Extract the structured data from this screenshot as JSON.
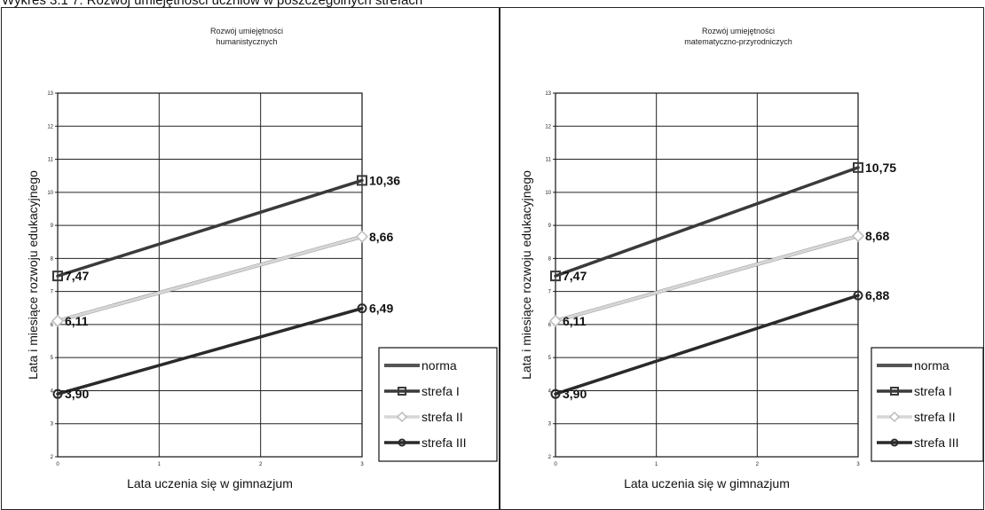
{
  "figure_caption": "Wykres 3.1 7. Rozwój umiejętności uczniów w poszczególnych strefach",
  "chart_data": [
    {
      "type": "line",
      "title": "Rozwój umiejętności humanistycznych",
      "xlabel": "Lata uczenia się w gimnazjum",
      "ylabel": "Lata i miesiące rozwoju edukacyjnego",
      "x": [
        0,
        3
      ],
      "xticks": [
        "0",
        "1",
        "2",
        "3"
      ],
      "ylim": [
        2,
        13
      ],
      "yticks": [
        "2",
        "3",
        "4",
        "5",
        "6",
        "7",
        "8",
        "9",
        "10",
        "11",
        "12",
        "13"
      ],
      "grid": true,
      "legend_position": "right",
      "series": [
        {
          "name": "norma",
          "values": [
            6.11,
            8.66
          ],
          "color": "#555555"
        },
        {
          "name": "strefa I",
          "values": [
            7.47,
            10.36
          ],
          "color": "#3a3a3a"
        },
        {
          "name": "strefa II",
          "values": [
            6.11,
            8.66
          ],
          "color": "#d6d6d6"
        },
        {
          "name": "strefa III",
          "values": [
            3.9,
            6.49
          ],
          "color": "#2a2a2a"
        }
      ],
      "data_labels": [
        {
          "text": "7,47",
          "x": 0,
          "y": 7.47,
          "side": "right"
        },
        {
          "text": "6,11",
          "x": 0,
          "y": 6.11,
          "side": "right"
        },
        {
          "text": "3,90",
          "x": 0,
          "y": 3.9,
          "side": "right"
        },
        {
          "text": "10,36",
          "x": 3,
          "y": 10.36,
          "side": "right"
        },
        {
          "text": "8,66",
          "x": 3,
          "y": 8.66,
          "side": "right"
        },
        {
          "text": "6,49",
          "x": 3,
          "y": 6.49,
          "side": "right"
        }
      ]
    },
    {
      "type": "line",
      "title": "Rozwój umiejętności matematyczno-przyrodniczych",
      "xlabel": "Lata uczenia się w gimnazjum",
      "ylabel": "Lata i miesiące rozwoju edukacyjnego",
      "x": [
        0,
        3
      ],
      "xticks": [
        "0",
        "1",
        "2",
        "3"
      ],
      "ylim": [
        2,
        13
      ],
      "yticks": [
        "2",
        "3",
        "4",
        "5",
        "6",
        "7",
        "8",
        "9",
        "10",
        "11",
        "12",
        "13"
      ],
      "grid": true,
      "legend_position": "right",
      "series": [
        {
          "name": "norma",
          "values": [
            6.11,
            8.68
          ],
          "color": "#555555"
        },
        {
          "name": "strefa I",
          "values": [
            7.47,
            10.75
          ],
          "color": "#3a3a3a"
        },
        {
          "name": "strefa II",
          "values": [
            6.11,
            8.68
          ],
          "color": "#d6d6d6"
        },
        {
          "name": "strefa III",
          "values": [
            3.9,
            6.88
          ],
          "color": "#2a2a2a"
        }
      ],
      "data_labels": [
        {
          "text": "7,47",
          "x": 0,
          "y": 7.47,
          "side": "right"
        },
        {
          "text": "6,11",
          "x": 0,
          "y": 6.11,
          "side": "right"
        },
        {
          "text": "3,90",
          "x": 0,
          "y": 3.9,
          "side": "right"
        },
        {
          "text": "10,75",
          "x": 3,
          "y": 10.75,
          "side": "right"
        },
        {
          "text": "8,68",
          "x": 3,
          "y": 8.68,
          "side": "right"
        },
        {
          "text": "6,88",
          "x": 3,
          "y": 6.88,
          "side": "right"
        }
      ]
    }
  ]
}
